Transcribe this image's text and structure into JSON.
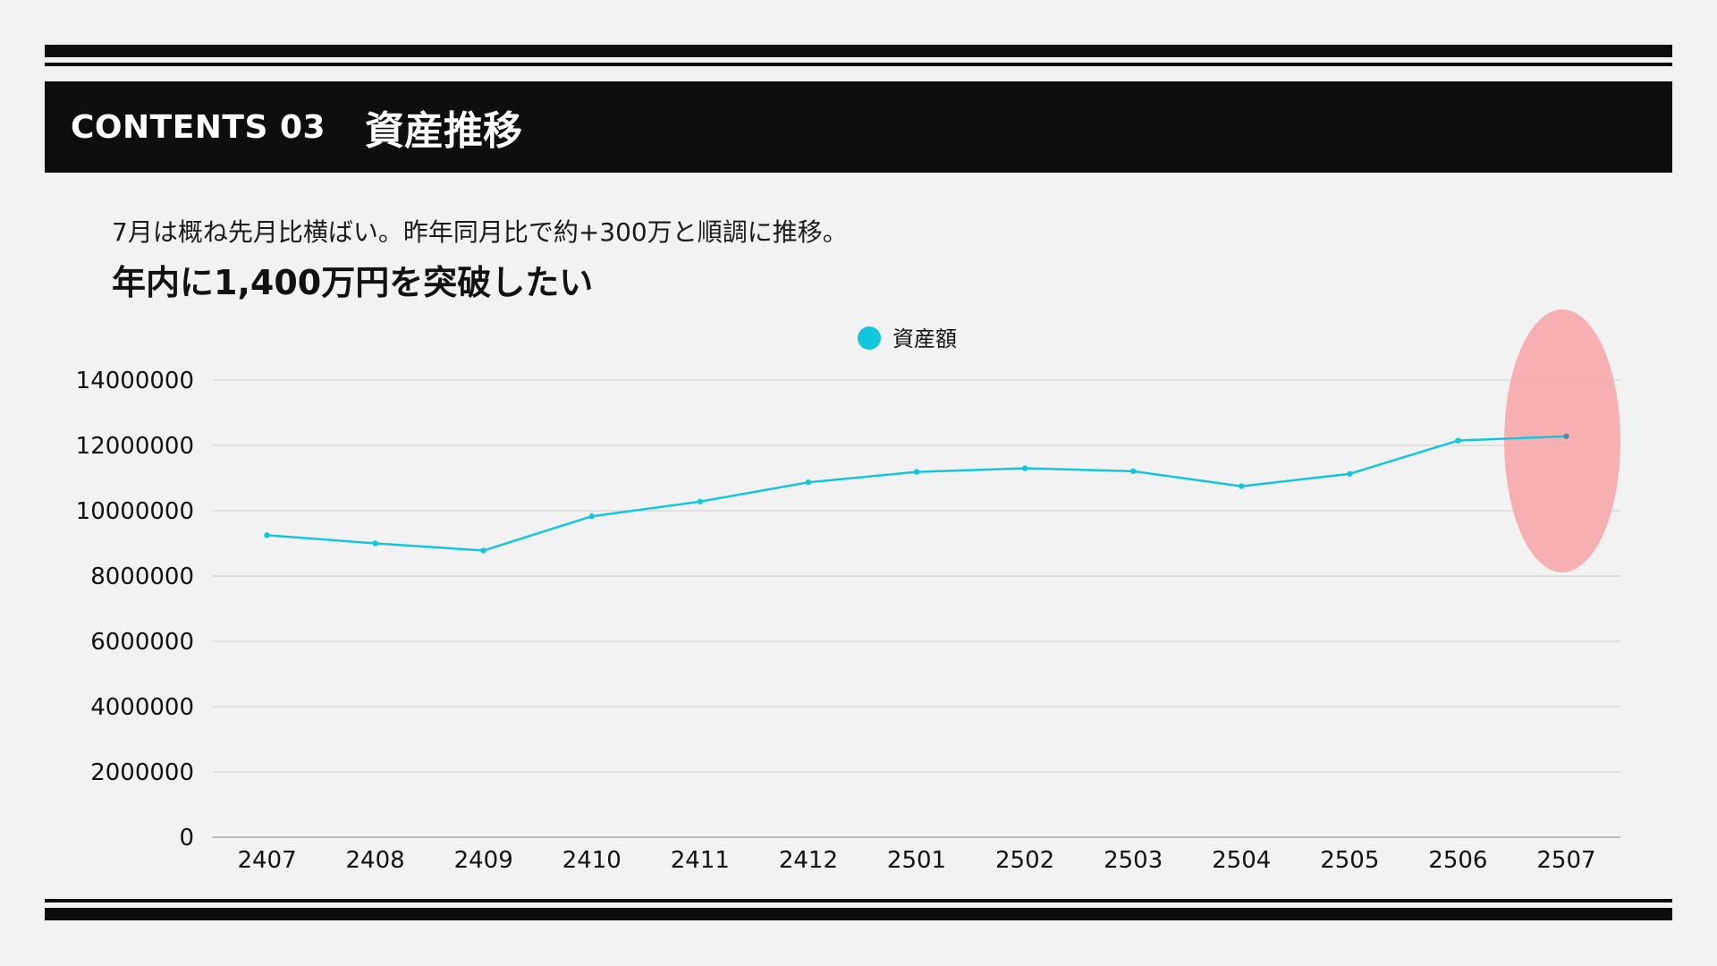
{
  "header": {
    "contents_label": "CONTENTS 03",
    "title": "資産推移"
  },
  "body": {
    "summary": "7月は概ね先月比横ばい。昨年同月比で約+300万と順調に推移。",
    "headline": "年内に1,400万円を突破したい"
  },
  "colors": {
    "series": "#13c6de",
    "highlight": "#f7a9aa",
    "header_bg": "#0e0e0e",
    "background": "#f2f2f2"
  },
  "chart_data": {
    "type": "line",
    "categories": [
      "2407",
      "2408",
      "2409",
      "2410",
      "2411",
      "2412",
      "2501",
      "2502",
      "2503",
      "2504",
      "2505",
      "2506",
      "2507"
    ],
    "series": [
      {
        "name": "資産額",
        "values": [
          9250000,
          9000000,
          8780000,
          9830000,
          10280000,
          10870000,
          11190000,
          11300000,
          11210000,
          10750000,
          11130000,
          12150000,
          12280000
        ]
      }
    ],
    "yticks": [
      0,
      2000000,
      4000000,
      6000000,
      8000000,
      10000000,
      12000000,
      14000000
    ],
    "ylim": [
      0,
      14000000
    ],
    "grid": true,
    "legend": "top-center",
    "highlight_category": "2507"
  }
}
